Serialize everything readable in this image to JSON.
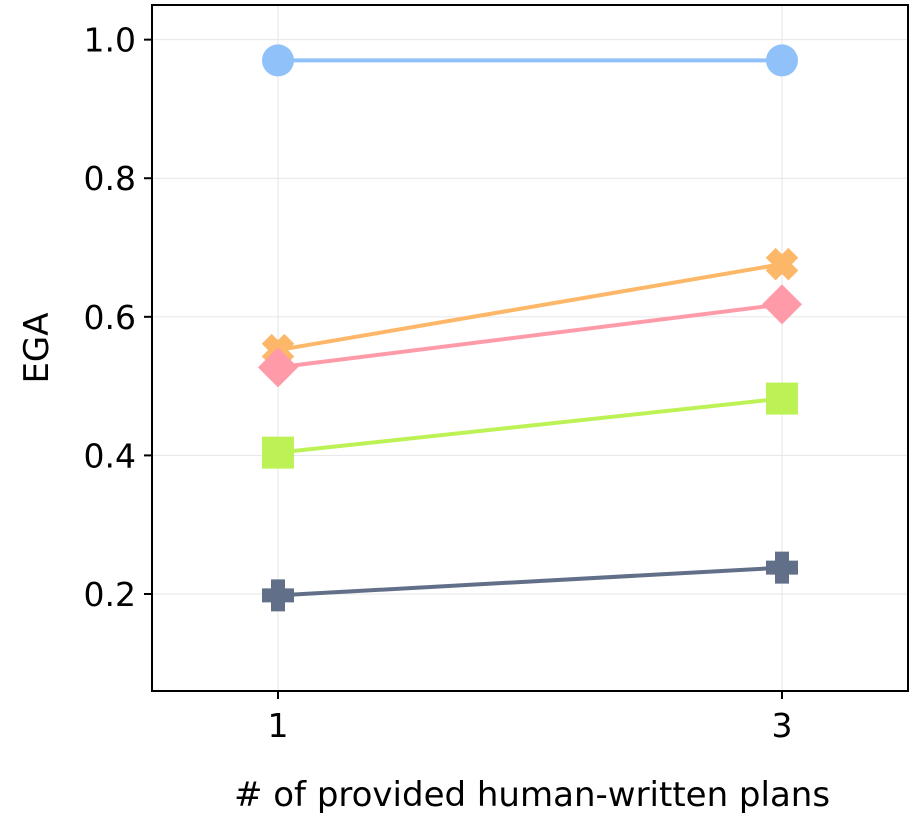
{
  "chart_data": {
    "type": "line",
    "title": "",
    "xlabel": "# of provided human-written plans",
    "ylabel": "EGA",
    "x": [
      1,
      3
    ],
    "xtick_labels": [
      "1",
      "3"
    ],
    "xlim": [
      0.5,
      3.5
    ],
    "ylim": [
      0.06,
      1.05
    ],
    "yticks": [
      0.2,
      0.4,
      0.6,
      0.8,
      1.0
    ],
    "ytick_labels": [
      "0.2",
      "0.4",
      "0.6",
      "0.8",
      "1.0"
    ],
    "grid": true,
    "legend": "none",
    "series": [
      {
        "name": "series-blue-circle",
        "values": [
          0.97,
          0.97
        ],
        "color": "#90c2f9",
        "marker": "circle"
      },
      {
        "name": "series-orange-x",
        "values": [
          0.552,
          0.676
        ],
        "color": "#fdb769",
        "marker": "x"
      },
      {
        "name": "series-pink-diamond",
        "values": [
          0.527,
          0.618
        ],
        "color": "#ff9aa8",
        "marker": "diamond"
      },
      {
        "name": "series-green-square",
        "values": [
          0.404,
          0.482
        ],
        "color": "#bdf256",
        "marker": "square"
      },
      {
        "name": "series-slate-plus",
        "values": [
          0.198,
          0.238
        ],
        "color": "#617088",
        "marker": "plus"
      }
    ]
  }
}
